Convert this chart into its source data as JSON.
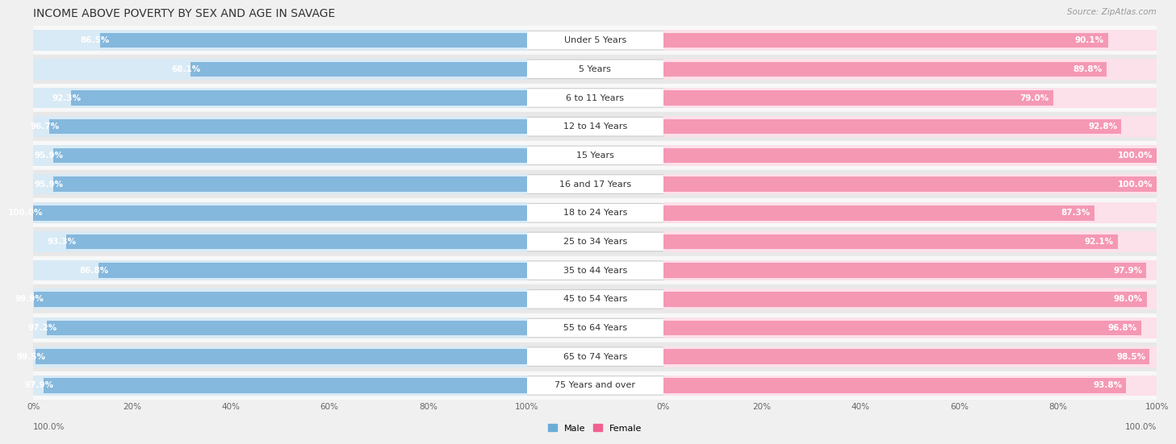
{
  "title": "INCOME ABOVE POVERTY BY SEX AND AGE IN SAVAGE",
  "source": "Source: ZipAtlas.com",
  "categories": [
    "Under 5 Years",
    "5 Years",
    "6 to 11 Years",
    "12 to 14 Years",
    "15 Years",
    "16 and 17 Years",
    "18 to 24 Years",
    "25 to 34 Years",
    "35 to 44 Years",
    "45 to 54 Years",
    "55 to 64 Years",
    "65 to 74 Years",
    "75 Years and over"
  ],
  "male_values": [
    86.5,
    68.1,
    92.3,
    96.7,
    95.9,
    95.9,
    100.0,
    93.3,
    86.8,
    99.9,
    97.2,
    99.5,
    97.9
  ],
  "female_values": [
    90.1,
    89.8,
    79.0,
    92.8,
    100.0,
    100.0,
    87.3,
    92.1,
    97.9,
    98.0,
    96.8,
    98.5,
    93.8
  ],
  "male_color": "#85b8dd",
  "female_color": "#f598b4",
  "male_track_color": "#d8eaf5",
  "female_track_color": "#fce0ea",
  "male_label": "Male",
  "female_label": "Female",
  "male_legend_color": "#6aaed6",
  "female_legend_color": "#f06090",
  "background_color": "#f0f0f0",
  "row_bg_odd": "#e8e8e8",
  "row_bg_even": "#f8f8f8",
  "title_fontsize": 10,
  "label_fontsize": 8,
  "value_fontsize": 7.5,
  "axis_fontsize": 7.5,
  "max_value": 100.0
}
